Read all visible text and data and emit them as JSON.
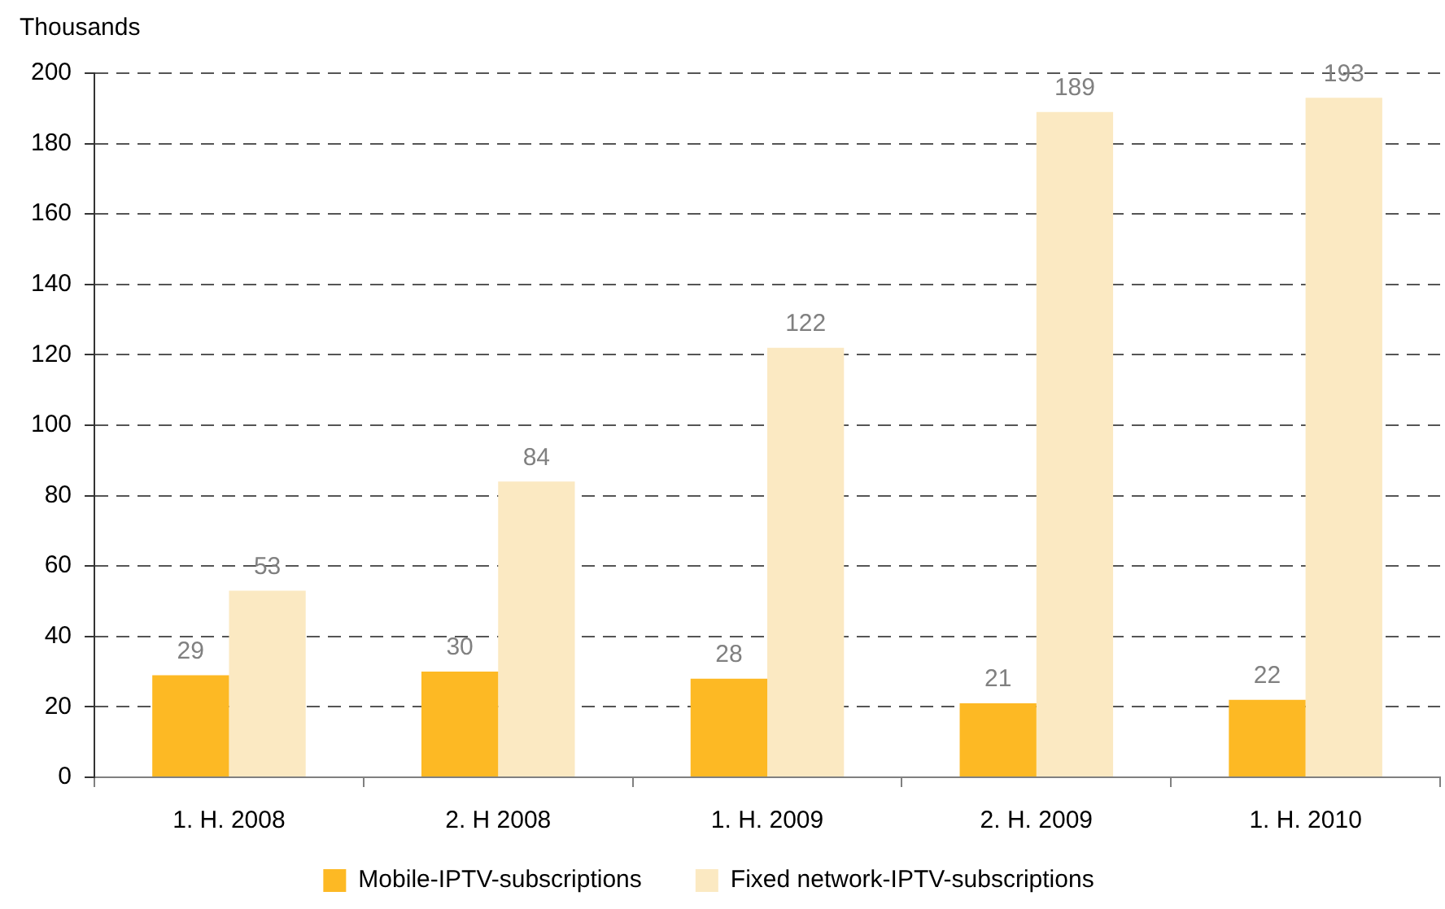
{
  "chart_data": {
    "type": "bar",
    "ylabel": "Thousands",
    "categories": [
      "1. H. 2008",
      "2. H 2008",
      "1. H. 2009",
      "2. H. 2009",
      "1. H. 2010"
    ],
    "series": [
      {
        "name": "Mobile-IPTV-subscriptions",
        "color": "#fdb924",
        "values": [
          29,
          30,
          28,
          21,
          22
        ]
      },
      {
        "name": "Fixed network-IPTV-subscriptions",
        "color": "#fbe9c2",
        "values": [
          53,
          84,
          122,
          189,
          193
        ]
      }
    ],
    "ylim": [
      0,
      200
    ],
    "yticks": [
      0,
      20,
      40,
      60,
      80,
      100,
      120,
      140,
      160,
      180,
      200
    ],
    "grid": "y",
    "legend": "bottom",
    "data_labels": true
  }
}
